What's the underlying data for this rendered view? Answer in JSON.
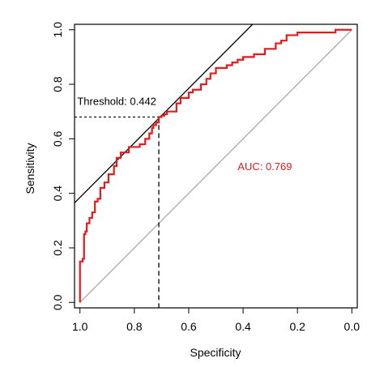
{
  "chart_data": {
    "type": "line",
    "title": "",
    "xlabel": "Specificity",
    "ylabel": "Sensitivity",
    "xlim": [
      1.02,
      -0.02
    ],
    "ylim": [
      -0.02,
      1.02
    ],
    "x_reversed": true,
    "grid": false,
    "legend": "none",
    "xticks": [
      1.0,
      0.8,
      0.6,
      0.4,
      0.2,
      0.0
    ],
    "xtick_labels": [
      "1.0",
      "0.8",
      "0.6",
      "0.4",
      "0.2",
      "0.0"
    ],
    "yticks": [
      0.0,
      0.2,
      0.4,
      0.6,
      0.8,
      1.0
    ],
    "ytick_labels": [
      "0.0",
      "0.2",
      "0.4",
      "0.6",
      "0.8",
      "1.0"
    ],
    "series": [
      {
        "color": "#e41a1c",
        "step": true,
        "x": [
          1.0,
          1.0,
          0.99,
          0.985,
          0.98,
          0.975,
          0.965,
          0.955,
          0.945,
          0.935,
          0.925,
          0.91,
          0.895,
          0.875,
          0.865,
          0.85,
          0.835,
          0.82,
          0.8,
          0.78,
          0.76,
          0.745,
          0.735,
          0.73,
          0.72,
          0.71,
          0.7,
          0.69,
          0.68,
          0.66,
          0.645,
          0.63,
          0.62,
          0.6,
          0.585,
          0.57,
          0.555,
          0.535,
          0.52,
          0.5,
          0.48,
          0.46,
          0.44,
          0.42,
          0.4,
          0.38,
          0.36,
          0.34,
          0.32,
          0.3,
          0.28,
          0.26,
          0.24,
          0.22,
          0.2,
          0.18,
          0.16,
          0.14,
          0.12,
          0.1,
          0.08,
          0.06,
          0.05,
          0.04,
          0.03,
          0.02,
          0.0
        ],
        "y": [
          0.0,
          0.15,
          0.16,
          0.25,
          0.26,
          0.29,
          0.31,
          0.33,
          0.37,
          0.38,
          0.42,
          0.44,
          0.47,
          0.5,
          0.53,
          0.55,
          0.55,
          0.57,
          0.57,
          0.58,
          0.6,
          0.62,
          0.64,
          0.65,
          0.66,
          0.68,
          0.685,
          0.69,
          0.7,
          0.7,
          0.73,
          0.75,
          0.75,
          0.77,
          0.78,
          0.78,
          0.8,
          0.82,
          0.84,
          0.86,
          0.86,
          0.87,
          0.88,
          0.89,
          0.9,
          0.9,
          0.91,
          0.91,
          0.93,
          0.93,
          0.95,
          0.96,
          0.98,
          0.98,
          0.99,
          0.99,
          0.99,
          0.99,
          0.99,
          0.99,
          0.99,
          1.0,
          1.0,
          1.0,
          1.0,
          1.0,
          1.0
        ]
      }
    ],
    "reference_line": {
      "from": [
        1.0,
        0.0
      ],
      "to": [
        0.0,
        1.0
      ],
      "color": "#aaaaaa"
    },
    "tangent_line": {
      "from": [
        1.02,
        0.365
      ],
      "to": [
        0.365,
        1.02
      ],
      "color": "#000000"
    },
    "threshold": {
      "label": "Threshold: 0.442",
      "specificity": 0.71,
      "sensitivity": 0.68,
      "label_at": [
        1.01,
        0.725
      ]
    },
    "auc": {
      "label": "AUC: 0.769",
      "color": "#e41a1c",
      "label_at": [
        0.32,
        0.485
      ]
    }
  }
}
